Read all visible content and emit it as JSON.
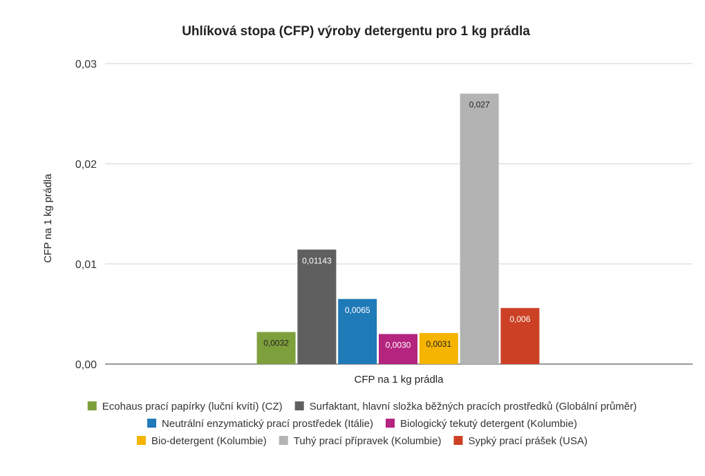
{
  "chart_data": {
    "type": "bar",
    "title": "Uhlíková stopa (CFP) výroby detergentu pro 1 kg prádla",
    "xlabel": "CFP na 1 kg prádla",
    "ylabel": "CFP na 1 kg prádla",
    "categories": [
      "CFP na 1 kg prádla"
    ],
    "ylim": [
      0,
      0.03
    ],
    "yticks": [
      0,
      0.01,
      0.02,
      0.03
    ],
    "ytick_labels": [
      "0,00",
      "0,01",
      "0,02",
      "0,03"
    ],
    "grid": true,
    "legend_position": "bottom",
    "series": [
      {
        "name": "Ecohaus prací papírky (luční kvítí) (CZ)",
        "value": 0.0032,
        "label": "0,0032",
        "color": "#7ea03c",
        "label_color": "#222222"
      },
      {
        "name": "Surfaktant, hlavní složka běžných pracích prostředků (Globální průměr)",
        "value": 0.01143,
        "label": "0,01143",
        "color": "#5f5f5f",
        "label_color": "#ffffff"
      },
      {
        "name": "Neutrální enzymatický prací prostředek (Itálie)",
        "value": 0.0065,
        "label": "0,0065",
        "color": "#1f7ab8",
        "label_color": "#ffffff"
      },
      {
        "name": "Biologický tekutý detergent (Kolumbie)",
        "value": 0.003,
        "label": "0,0030",
        "color": "#b5247f",
        "label_color": "#ffffff"
      },
      {
        "name": "Bio-detergent (Kolumbie)",
        "value": 0.0031,
        "label": "0,0031",
        "color": "#f4b400",
        "label_color": "#222222"
      },
      {
        "name": "Tuhý prací přípravek (Kolumbie)",
        "value": 0.027,
        "label": "0,027",
        "color": "#b3b3b3",
        "label_color": "#222222"
      },
      {
        "name": "Sypký prací prášek (USA)",
        "value": 0.0056,
        "label": "0,006",
        "color": "#cc4125",
        "label_color": "#ffffff"
      }
    ]
  }
}
